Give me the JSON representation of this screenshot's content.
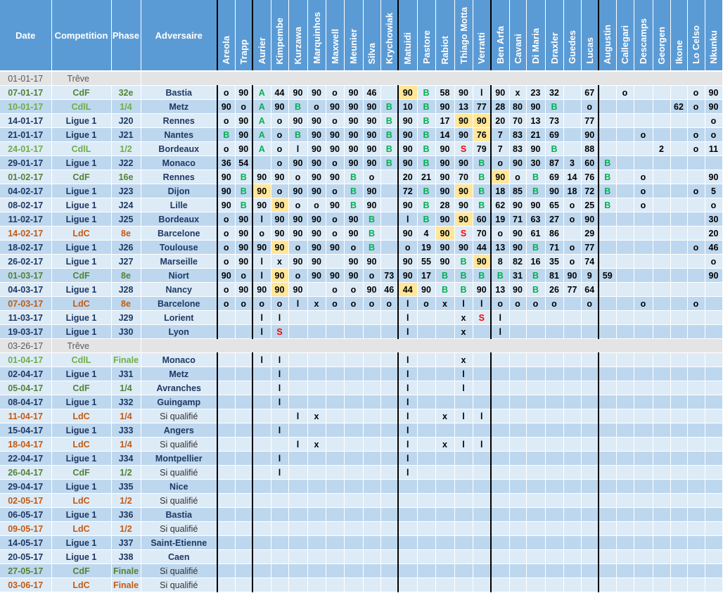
{
  "headers": {
    "date": "Date",
    "competition": "Competition",
    "phase": "Phase",
    "adversaire": "Adversaire"
  },
  "players": [
    "Areola",
    "Trapp",
    "Aurier",
    "Kimpembe",
    "Kurzawa",
    "Marquinhos",
    "Maxwell",
    "Meunier",
    "Silva",
    "Krychowiak",
    "Matuidi",
    "Pastore",
    "Rabiot",
    "Thiago Motta",
    "Verratti",
    "Ben Arfa",
    "Cavani",
    "Di Maria",
    "Draxler",
    "Guedes",
    "Lucas",
    "Augustin",
    "Callegari",
    "Descamps",
    "Georgen",
    "Ikone",
    "Lo Celso",
    "Nkunku"
  ],
  "colors": {
    "header_bg": "#5b9bd5",
    "row_light": "#ddebf7",
    "row_dark": "#bdd7ee",
    "highlight": "#ffe699",
    "ligue1": "#1f3864",
    "cdf": "#548235",
    "cdll": "#70ad47",
    "ldc": "#c55a11",
    "green_mark": "#00b050",
    "red_mark": "#ff0000"
  },
  "rows": [
    {
      "type": "treve",
      "date": "01-01-17",
      "label": "Trêve"
    },
    {
      "date": "07-01-17",
      "comp": "CdF",
      "phase": "32e",
      "adv": "Bastia",
      "cells": [
        "o",
        "90",
        "A",
        "44",
        "90",
        "90",
        "o",
        "90",
        "46",
        "",
        "90",
        "B",
        "58",
        "90",
        "l",
        "90",
        "x",
        "23",
        "32",
        "",
        "67",
        "",
        "o",
        "",
        "",
        "",
        "o",
        "90"
      ],
      "hl": [
        10
      ]
    },
    {
      "date": "10-01-17",
      "comp": "CdlL",
      "phase": "1/4",
      "adv": "Metz",
      "cells": [
        "90",
        "o",
        "A",
        "90",
        "B",
        "o",
        "90",
        "90",
        "90",
        "B",
        "10",
        "B",
        "90",
        "13",
        "77",
        "28",
        "80",
        "90",
        "B",
        "",
        "o",
        "",
        "",
        "",
        "",
        "62",
        "o",
        "90"
      ],
      "hl": []
    },
    {
      "date": "14-01-17",
      "comp": "Ligue 1",
      "phase": "J20",
      "adv": "Rennes",
      "cells": [
        "o",
        "90",
        "A",
        "o",
        "90",
        "90",
        "o",
        "90",
        "90",
        "B",
        "90",
        "B",
        "17",
        "90",
        "90",
        "20",
        "70",
        "13",
        "73",
        "",
        "77",
        "",
        "",
        "",
        "",
        "",
        "",
        "o"
      ],
      "hl": [
        13,
        14
      ]
    },
    {
      "date": "21-01-17",
      "comp": "Ligue 1",
      "phase": "J21",
      "adv": "Nantes",
      "cells": [
        "B",
        "90",
        "A",
        "o",
        "B",
        "90",
        "90",
        "90",
        "90",
        "B",
        "90",
        "B",
        "14",
        "90",
        "76",
        "7",
        "83",
        "21",
        "69",
        "",
        "90",
        "",
        "",
        "o",
        "",
        "",
        "o",
        "o"
      ],
      "hl": [
        14
      ]
    },
    {
      "date": "24-01-17",
      "comp": "CdlL",
      "phase": "1/2",
      "adv": "Bordeaux",
      "cells": [
        "o",
        "90",
        "A",
        "o",
        "l",
        "90",
        "90",
        "90",
        "90",
        "B",
        "90",
        "B",
        "90",
        "S",
        "79",
        "7",
        "83",
        "90",
        "B",
        "",
        "88",
        "",
        "",
        "",
        "2",
        "",
        "o",
        "11"
      ],
      "hl": []
    },
    {
      "date": "29-01-17",
      "comp": "Ligue 1",
      "phase": "J22",
      "adv": "Monaco",
      "cells": [
        "36",
        "54",
        "",
        "o",
        "90",
        "90",
        "o",
        "90",
        "90",
        "B",
        "90",
        "B",
        "90",
        "90",
        "B",
        "o",
        "90",
        "30",
        "87",
        "3",
        "60",
        "B",
        "",
        "",
        "",
        "",
        "",
        ""
      ],
      "hl": []
    },
    {
      "date": "01-02-17",
      "comp": "CdF",
      "phase": "16e",
      "adv": "Rennes",
      "cells": [
        "90",
        "B",
        "90",
        "90",
        "o",
        "90",
        "90",
        "B",
        "o",
        "",
        "20",
        "21",
        "90",
        "70",
        "B",
        "90",
        "o",
        "B",
        "69",
        "14",
        "76",
        "B",
        "",
        "o",
        "",
        "",
        "",
        "90"
      ],
      "hl": [
        15
      ]
    },
    {
      "date": "04-02-17",
      "comp": "Ligue 1",
      "phase": "J23",
      "adv": "Dijon",
      "cells": [
        "90",
        "B",
        "90",
        "o",
        "90",
        "90",
        "o",
        "B",
        "90",
        "",
        "72",
        "B",
        "90",
        "90",
        "B",
        "18",
        "85",
        "B",
        "90",
        "18",
        "72",
        "B",
        "",
        "o",
        "",
        "",
        "o",
        "5"
      ],
      "hl": [
        2,
        13
      ]
    },
    {
      "date": "08-02-17",
      "comp": "Ligue 1",
      "phase": "J24",
      "adv": "Lille",
      "cells": [
        "90",
        "B",
        "90",
        "90",
        "o",
        "o",
        "90",
        "B",
        "90",
        "",
        "90",
        "B",
        "28",
        "90",
        "B",
        "62",
        "90",
        "90",
        "65",
        "o",
        "25",
        "B",
        "",
        "o",
        "",
        "",
        "",
        "o"
      ],
      "hl": [
        3
      ]
    },
    {
      "date": "11-02-17",
      "comp": "Ligue 1",
      "phase": "J25",
      "adv": "Bordeaux",
      "cells": [
        "o",
        "90",
        "l",
        "90",
        "90",
        "90",
        "o",
        "90",
        "B",
        "",
        "l",
        "B",
        "90",
        "90",
        "60",
        "19",
        "71",
        "63",
        "27",
        "o",
        "90",
        "",
        "",
        "",
        "",
        "",
        "",
        "30"
      ],
      "hl": [
        13
      ]
    },
    {
      "date": "14-02-17",
      "comp": "LdC",
      "phase": "8e",
      "adv": "Barcelone",
      "cells": [
        "o",
        "90",
        "o",
        "90",
        "90",
        "90",
        "o",
        "90",
        "B",
        "",
        "90",
        "4",
        "90",
        "S",
        "70",
        "o",
        "90",
        "61",
        "86",
        "",
        "29",
        "",
        "",
        "",
        "",
        "",
        "",
        "20"
      ],
      "hl": [
        12
      ]
    },
    {
      "date": "18-02-17",
      "comp": "Ligue 1",
      "phase": "J26",
      "adv": "Toulouse",
      "cells": [
        "o",
        "90",
        "90",
        "90",
        "o",
        "90",
        "90",
        "o",
        "B",
        "",
        "o",
        "19",
        "90",
        "90",
        "44",
        "13",
        "90",
        "B",
        "71",
        "o",
        "77",
        "",
        "",
        "",
        "",
        "",
        "o",
        "46"
      ],
      "hl": [
        3
      ]
    },
    {
      "date": "26-02-17",
      "comp": "Ligue 1",
      "phase": "J27",
      "adv": "Marseille",
      "cells": [
        "o",
        "90",
        "l",
        "x",
        "90",
        "90",
        "",
        "90",
        "90",
        "",
        "90",
        "55",
        "90",
        "B",
        "90",
        "8",
        "82",
        "16",
        "35",
        "o",
        "74",
        "",
        "",
        "",
        "",
        "",
        "",
        "o"
      ],
      "hl": [
        14
      ]
    },
    {
      "date": "01-03-17",
      "comp": "CdF",
      "phase": "8e",
      "adv": "Niort",
      "cells": [
        "90",
        "o",
        "l",
        "90",
        "o",
        "90",
        "90",
        "90",
        "o",
        "73",
        "90",
        "17",
        "B",
        "B",
        "B",
        "B",
        "31",
        "B",
        "81",
        "90",
        "9",
        "59",
        "",
        "",
        "",
        "",
        "",
        "90"
      ],
      "hl": [
        3
      ]
    },
    {
      "date": "04-03-17",
      "comp": "Ligue 1",
      "phase": "J28",
      "adv": "Nancy",
      "cells": [
        "o",
        "90",
        "90",
        "90",
        "90",
        "",
        "o",
        "o",
        "90",
        "46",
        "44",
        "90",
        "B",
        "B",
        "90",
        "13",
        "90",
        "B",
        "26",
        "77",
        "64",
        "",
        "",
        "",
        "",
        "",
        "",
        ""
      ],
      "hl": [
        3,
        10
      ]
    },
    {
      "date": "07-03-17",
      "comp": "LdC",
      "phase": "8e",
      "adv": "Barcelone",
      "cells": [
        "o",
        "o",
        "o",
        "o",
        "l",
        "x",
        "o",
        "o",
        "o",
        "o",
        "l",
        "o",
        "x",
        "l",
        "l",
        "o",
        "o",
        "o",
        "o",
        "",
        "o",
        "",
        "",
        "o",
        "",
        "",
        "o",
        ""
      ],
      "hl": []
    },
    {
      "date": "11-03-17",
      "comp": "Ligue 1",
      "phase": "J29",
      "adv": "Lorient",
      "cells": [
        "",
        "",
        "l",
        "l",
        "",
        "",
        "",
        "",
        "",
        "",
        "l",
        "",
        "",
        "x",
        "S",
        "l",
        "",
        "",
        "",
        "",
        "",
        "",
        "",
        "",
        "",
        "",
        "",
        ""
      ],
      "hl": []
    },
    {
      "date": "19-03-17",
      "comp": "Ligue 1",
      "phase": "J30",
      "adv": "Lyon",
      "cells": [
        "",
        "",
        "l",
        "S",
        "",
        "",
        "",
        "",
        "",
        "",
        "l",
        "",
        "",
        "x",
        "",
        "l",
        "",
        "",
        "",
        "",
        "",
        "",
        "",
        "",
        "",
        "",
        "",
        ""
      ],
      "hl": []
    },
    {
      "type": "treve",
      "date": "03-26-17",
      "label": "Trêve"
    },
    {
      "date": "01-04-17",
      "comp": "CdlL",
      "phase": "Finale",
      "adv": "Monaco",
      "cells": [
        "",
        "",
        "l",
        "l",
        "",
        "",
        "",
        "",
        "",
        "",
        "l",
        "",
        "",
        "x",
        "",
        "",
        "",
        "",
        "",
        "",
        "",
        "",
        "",
        "",
        "",
        "",
        "",
        ""
      ],
      "hl": []
    },
    {
      "date": "02-04-17",
      "comp": "Ligue 1",
      "phase": "J31",
      "adv": "Metz",
      "cells": [
        "",
        "",
        "",
        "l",
        "",
        "",
        "",
        "",
        "",
        "",
        "l",
        "",
        "",
        "l",
        "",
        "",
        "",
        "",
        "",
        "",
        "",
        "",
        "",
        "",
        "",
        "",
        "",
        ""
      ],
      "hl": []
    },
    {
      "date": "05-04-17",
      "comp": "CdF",
      "phase": "1/4",
      "adv": "Avranches",
      "cells": [
        "",
        "",
        "",
        "l",
        "",
        "",
        "",
        "",
        "",
        "",
        "l",
        "",
        "",
        "l",
        "",
        "",
        "",
        "",
        "",
        "",
        "",
        "",
        "",
        "",
        "",
        "",
        "",
        ""
      ],
      "hl": []
    },
    {
      "date": "08-04-17",
      "comp": "Ligue 1",
      "phase": "J32",
      "adv": "Guingamp",
      "cells": [
        "",
        "",
        "",
        "l",
        "",
        "",
        "",
        "",
        "",
        "",
        "l",
        "",
        "",
        "",
        "",
        "",
        "",
        "",
        "",
        "",
        "",
        "",
        "",
        "",
        "",
        "",
        "",
        ""
      ],
      "hl": []
    },
    {
      "date": "11-04-17",
      "comp": "LdC",
      "phase": "1/4",
      "adv": "Si qualifié",
      "q": true,
      "cells": [
        "",
        "",
        "",
        "",
        "l",
        "x",
        "",
        "",
        "",
        "",
        "l",
        "",
        "x",
        "l",
        "l",
        "",
        "",
        "",
        "",
        "",
        "",
        "",
        "",
        "",
        "",
        "",
        "",
        ""
      ],
      "hl": []
    },
    {
      "date": "15-04-17",
      "comp": "Ligue 1",
      "phase": "J33",
      "adv": "Angers",
      "cells": [
        "",
        "",
        "",
        "l",
        "",
        "",
        "",
        "",
        "",
        "",
        "l",
        "",
        "",
        "",
        "",
        "",
        "",
        "",
        "",
        "",
        "",
        "",
        "",
        "",
        "",
        "",
        "",
        ""
      ],
      "hl": []
    },
    {
      "date": "18-04-17",
      "comp": "LdC",
      "phase": "1/4",
      "adv": "Si qualifié",
      "q": true,
      "cells": [
        "",
        "",
        "",
        "",
        "l",
        "x",
        "",
        "",
        "",
        "",
        "l",
        "",
        "x",
        "l",
        "l",
        "",
        "",
        "",
        "",
        "",
        "",
        "",
        "",
        "",
        "",
        "",
        "",
        ""
      ],
      "hl": []
    },
    {
      "date": "22-04-17",
      "comp": "Ligue 1",
      "phase": "J34",
      "adv": "Montpellier",
      "cells": [
        "",
        "",
        "",
        "l",
        "",
        "",
        "",
        "",
        "",
        "",
        "l",
        "",
        "",
        "",
        "",
        "",
        "",
        "",
        "",
        "",
        "",
        "",
        "",
        "",
        "",
        "",
        "",
        ""
      ],
      "hl": []
    },
    {
      "date": "26-04-17",
      "comp": "CdF",
      "phase": "1/2",
      "adv": "Si qualifié",
      "q": true,
      "cells": [
        "",
        "",
        "",
        "l",
        "",
        "",
        "",
        "",
        "",
        "",
        "l",
        "",
        "",
        "",
        "",
        "",
        "",
        "",
        "",
        "",
        "",
        "",
        "",
        "",
        "",
        "",
        "",
        ""
      ],
      "hl": []
    },
    {
      "date": "29-04-17",
      "comp": "Ligue 1",
      "phase": "J35",
      "adv": "Nice",
      "cells": [],
      "hl": []
    },
    {
      "date": "02-05-17",
      "comp": "LdC",
      "phase": "1/2",
      "adv": "Si qualifié",
      "q": true,
      "cells": [],
      "hl": []
    },
    {
      "date": "06-05-17",
      "comp": "Ligue 1",
      "phase": "J36",
      "adv": "Bastia",
      "cells": [],
      "hl": []
    },
    {
      "date": "09-05-17",
      "comp": "LdC",
      "phase": "1/2",
      "adv": "Si qualifié",
      "q": true,
      "cells": [],
      "hl": []
    },
    {
      "date": "14-05-17",
      "comp": "Ligue 1",
      "phase": "J37",
      "adv": "Saint-Etienne",
      "cells": [],
      "hl": []
    },
    {
      "date": "20-05-17",
      "comp": "Ligue 1",
      "phase": "J38",
      "adv": "Caen",
      "cells": [],
      "hl": []
    },
    {
      "date": "27-05-17",
      "comp": "CdF",
      "phase": "Finale",
      "adv": "Si qualifié",
      "q": true,
      "cells": [],
      "hl": []
    },
    {
      "date": "03-06-17",
      "comp": "LdC",
      "phase": "Finale",
      "adv": "Si qualifié",
      "q": true,
      "cells": [],
      "hl": []
    }
  ]
}
